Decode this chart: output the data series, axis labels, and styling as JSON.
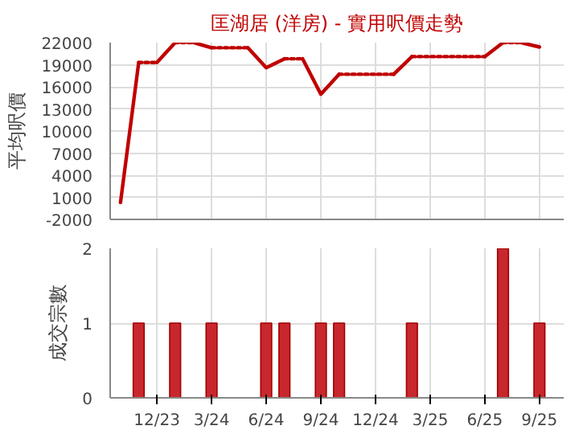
{
  "chart_data": [
    {
      "type": "line",
      "title": "匡湖居 (洋房) - 實用呎價走勢",
      "ylabel": "平均呎價",
      "xlim": [
        "2023-09-14",
        "2025-10-11"
      ],
      "xticks": [
        {
          "value": "2023-12",
          "label": null
        },
        {
          "value": "2024-03",
          "label": null
        },
        {
          "value": "2024-06",
          "label": null
        },
        {
          "value": "2024-09",
          "label": null
        },
        {
          "value": "2024-12",
          "label": null
        },
        {
          "value": "2025-03",
          "label": null
        },
        {
          "value": "2025-06",
          "label": null
        },
        {
          "value": "2025-09",
          "label": null
        }
      ],
      "ylim": [
        -2000,
        22000
      ],
      "yticks": [
        -2000,
        1000,
        4000,
        7000,
        10000,
        13000,
        16000,
        19000,
        22000
      ],
      "grid": true,
      "tick_labels": "y",
      "series": [
        {
          "color": "#c00000",
          "line_style": "solid",
          "x": [
            "2023-10",
            "2023-11"
          ],
          "values": [
            300,
            19300
          ]
        },
        {
          "color": "#c00000",
          "line_style": "dotted",
          "x": [
            "2023-11",
            "2023-12"
          ],
          "values": [
            19300,
            19300
          ]
        },
        {
          "color": "#c00000",
          "line_style": "solid",
          "x": [
            "2023-12",
            "2024-01"
          ],
          "values": [
            19300,
            22000
          ]
        },
        {
          "color": "#c00000",
          "line_style": "dotted",
          "x": [
            "2024-01",
            "2024-02"
          ],
          "values": [
            22000,
            22000
          ]
        },
        {
          "color": "#c00000",
          "line_style": "solid",
          "x": [
            "2024-02",
            "2024-03"
          ],
          "values": [
            22000,
            21300
          ]
        },
        {
          "color": "#c00000",
          "line_style": "dotted",
          "x": [
            "2024-03",
            "2024-05"
          ],
          "values": [
            21300,
            21300
          ]
        },
        {
          "color": "#c00000",
          "line_style": "solid",
          "x": [
            "2024-05",
            "2024-06",
            "2024-07"
          ],
          "values": [
            21300,
            18600,
            19800
          ]
        },
        {
          "color": "#c00000",
          "line_style": "dotted",
          "x": [
            "2024-07",
            "2024-08"
          ],
          "values": [
            19800,
            19800
          ]
        },
        {
          "color": "#c00000",
          "line_style": "solid",
          "x": [
            "2024-08",
            "2024-09",
            "2024-10"
          ],
          "values": [
            19800,
            15000,
            17700
          ]
        },
        {
          "color": "#c00000",
          "line_style": "dotted",
          "x": [
            "2024-10",
            "2025-01"
          ],
          "values": [
            17700,
            17700
          ]
        },
        {
          "color": "#c00000",
          "line_style": "solid",
          "x": [
            "2025-01",
            "2025-02"
          ],
          "values": [
            17700,
            20100
          ]
        },
        {
          "color": "#c00000",
          "line_style": "dotted",
          "x": [
            "2025-02",
            "2025-06"
          ],
          "values": [
            20100,
            20100
          ]
        },
        {
          "color": "#c00000",
          "line_style": "solid",
          "x": [
            "2025-06",
            "2025-07"
          ],
          "values": [
            20100,
            22000
          ]
        },
        {
          "color": "#c00000",
          "line_style": "dotted",
          "x": [
            "2025-07",
            "2025-08"
          ],
          "values": [
            22000,
            22000
          ]
        },
        {
          "color": "#c00000",
          "line_style": "solid",
          "x": [
            "2025-08",
            "2025-09"
          ],
          "values": [
            22000,
            21400
          ]
        }
      ]
    },
    {
      "type": "bar",
      "ylabel": "成交宗數",
      "xlim": [
        "2023-09-14",
        "2025-10-11"
      ],
      "xticks": [
        {
          "value": "2023-12",
          "label": "12/23"
        },
        {
          "value": "2024-03",
          "label": "3/24"
        },
        {
          "value": "2024-06",
          "label": "6/24"
        },
        {
          "value": "2024-09",
          "label": "9/24"
        },
        {
          "value": "2024-12",
          "label": "12/24"
        },
        {
          "value": "2025-03",
          "label": "3/25"
        },
        {
          "value": "2025-06",
          "label": "6/25"
        },
        {
          "value": "2025-09",
          "label": "9/25"
        }
      ],
      "ylim": [
        0,
        2
      ],
      "yticks": [
        0,
        1,
        2
      ],
      "grid": true,
      "color": "#c8282d",
      "x": [
        "2023-11",
        "2024-01",
        "2024-03",
        "2024-06",
        "2024-07",
        "2024-09",
        "2024-10",
        "2025-02",
        "2025-07",
        "2025-09"
      ],
      "values": [
        1,
        1,
        1,
        1,
        1,
        1,
        1,
        1,
        2,
        1
      ]
    }
  ]
}
